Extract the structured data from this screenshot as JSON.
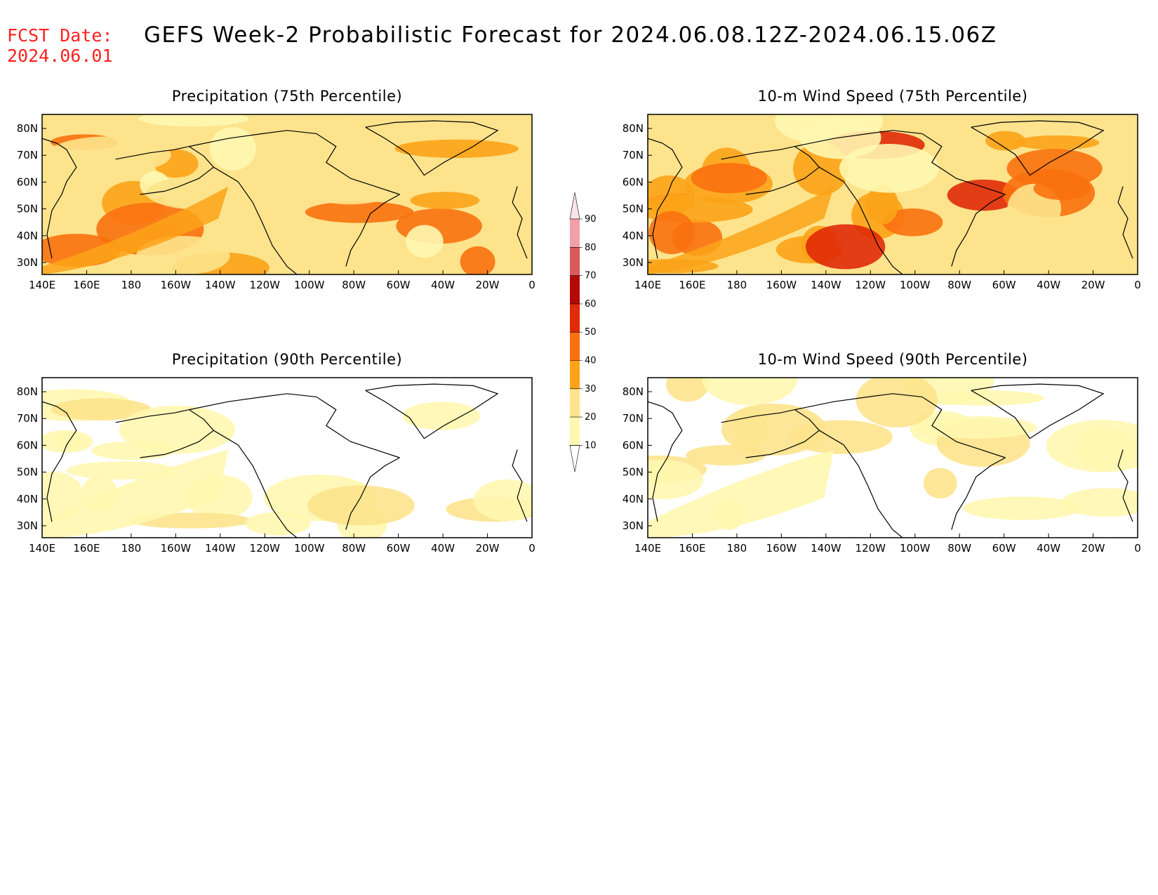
{
  "header": {
    "fcst_label": "FCST Date:",
    "fcst_date": "2024.06.01",
    "title": "GEFS Week-2 Probabilistic Forecast for 2024.06.08.12Z-2024.06.15.06Z"
  },
  "axes": {
    "lon_ticks": [
      "140E",
      "160E",
      "180",
      "160W",
      "140W",
      "120W",
      "100W",
      "80W",
      "60W",
      "40W",
      "20W",
      "0"
    ],
    "lat_ticks": [
      "80N",
      "70N",
      "60N",
      "50N",
      "40N",
      "30N"
    ]
  },
  "colorbar": {
    "levels": [
      "10",
      "20",
      "30",
      "40",
      "50",
      "60",
      "70",
      "80",
      "90"
    ],
    "colors": [
      "#fff7b0",
      "#fde38c",
      "#fca318",
      "#f97110",
      "#e02a08",
      "#b40a08",
      "#d85a5a",
      "#f0a0a8",
      "#fde4e8"
    ]
  },
  "panels": [
    {
      "id": "precip-75",
      "title": "Precipitation (75th Percentile)",
      "intensity": 0.6
    },
    {
      "id": "wind-75",
      "title": "10-m Wind Speed (75th Percentile)",
      "intensity": 0.7
    },
    {
      "id": "precip-90",
      "title": "Precipitation (90th Percentile)",
      "intensity": 0.2
    },
    {
      "id": "wind-90",
      "title": "10-m Wind Speed (90th Percentile)",
      "intensity": 0.25
    }
  ]
}
